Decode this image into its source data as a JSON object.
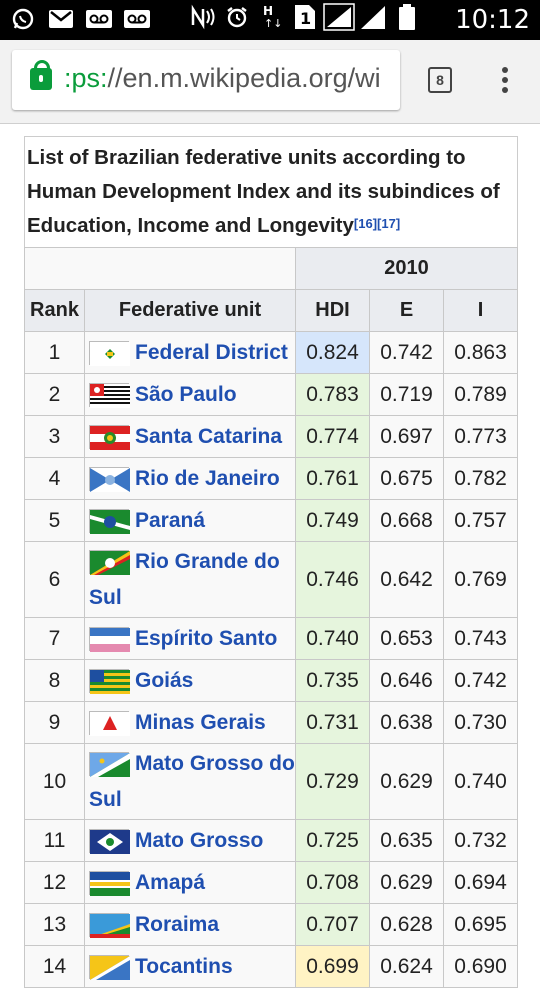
{
  "status_bar": {
    "time": "10:12",
    "tabs_count": "8"
  },
  "browser": {
    "url_scheme": ":ps:",
    "url_rest": "//en.m.wikipedia.org/wi"
  },
  "table": {
    "caption": "List of Brazilian federative units according to Human Development Index and its subindices of Education, Income and Longevity",
    "refs": [
      "[16]",
      "[17]"
    ],
    "year_header": "2010",
    "headers": {
      "rank": "Rank",
      "unit": "Federative unit",
      "hdi": "HDI",
      "e": "E",
      "i": "I"
    },
    "colors": {
      "hdi_very_high": "#d6e6fb",
      "hdi_high": "#e6f5dd",
      "hdi_medium": "#fff3c4",
      "link": "#1f4fb0"
    },
    "rows": [
      {
        "rank": "1",
        "unit": "Federal District",
        "hdi": "0.824",
        "e": "0.742",
        "i": "0.863",
        "level": "very_high",
        "flag": "federal-district-flag"
      },
      {
        "rank": "2",
        "unit": "São Paulo",
        "hdi": "0.783",
        "e": "0.719",
        "i": "0.789",
        "level": "high",
        "flag": "sao-paulo-flag"
      },
      {
        "rank": "3",
        "unit": "Santa Catarina",
        "hdi": "0.774",
        "e": "0.697",
        "i": "0.773",
        "level": "high",
        "flag": "santa-catarina-flag"
      },
      {
        "rank": "4",
        "unit": "Rio de Janeiro",
        "hdi": "0.761",
        "e": "0.675",
        "i": "0.782",
        "level": "high",
        "flag": "rio-de-janeiro-flag"
      },
      {
        "rank": "5",
        "unit": "Paraná",
        "hdi": "0.749",
        "e": "0.668",
        "i": "0.757",
        "level": "high",
        "flag": "parana-flag"
      },
      {
        "rank": "6",
        "unit": "Rio Grande do Sul",
        "hdi": "0.746",
        "e": "0.642",
        "i": "0.769",
        "level": "high",
        "flag": "rio-grande-do-sul-flag"
      },
      {
        "rank": "7",
        "unit": "Espírito Santo",
        "hdi": "0.740",
        "e": "0.653",
        "i": "0.743",
        "level": "high",
        "flag": "espirito-santo-flag"
      },
      {
        "rank": "8",
        "unit": "Goiás",
        "hdi": "0.735",
        "e": "0.646",
        "i": "0.742",
        "level": "high",
        "flag": "goias-flag"
      },
      {
        "rank": "9",
        "unit": "Minas Gerais",
        "hdi": "0.731",
        "e": "0.638",
        "i": "0.730",
        "level": "high",
        "flag": "minas-gerais-flag"
      },
      {
        "rank": "10",
        "unit": "Mato Grosso do Sul",
        "hdi": "0.729",
        "e": "0.629",
        "i": "0.740",
        "level": "high",
        "flag": "mato-grosso-do-sul-flag"
      },
      {
        "rank": "11",
        "unit": "Mato Grosso",
        "hdi": "0.725",
        "e": "0.635",
        "i": "0.732",
        "level": "high",
        "flag": "mato-grosso-flag"
      },
      {
        "rank": "12",
        "unit": "Amapá",
        "hdi": "0.708",
        "e": "0.629",
        "i": "0.694",
        "level": "high",
        "flag": "amapa-flag"
      },
      {
        "rank": "13",
        "unit": "Roraima",
        "hdi": "0.707",
        "e": "0.628",
        "i": "0.695",
        "level": "high",
        "flag": "roraima-flag"
      },
      {
        "rank": "14",
        "unit": "Tocantins",
        "hdi": "0.699",
        "e": "0.624",
        "i": "0.690",
        "level": "medium",
        "flag": "tocantins-flag"
      }
    ]
  }
}
